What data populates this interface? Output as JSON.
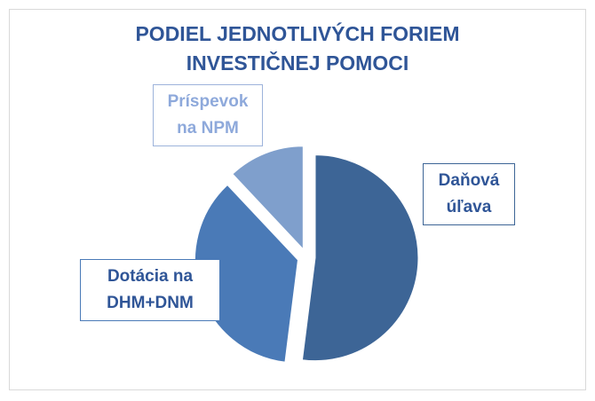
{
  "chart_data": {
    "type": "pie",
    "title": "PODIEL JEDNOTLIVÝCH FORIEM INVESTIČNEJ POMOCI",
    "categories": [
      "Daňová úľava",
      "Dotácia na DHM+DNM",
      "Príspevok na NPM"
    ],
    "values": [
      52,
      36,
      12
    ],
    "colors": [
      "#3d6596",
      "#4a7ab7",
      "#7f9fcc"
    ],
    "exploded": true,
    "legend": false
  }
}
